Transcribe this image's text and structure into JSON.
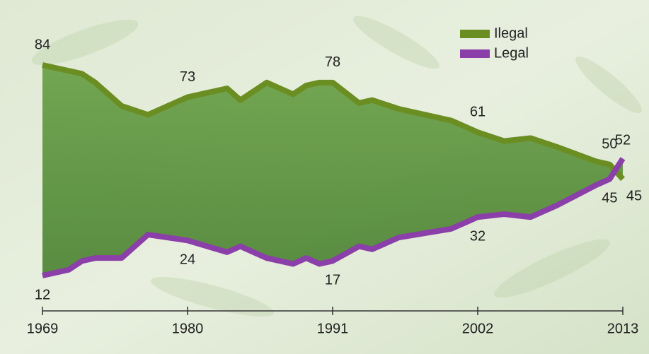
{
  "chart_data": {
    "type": "line",
    "x": [
      1969,
      1971,
      1972,
      1973,
      1975,
      1977,
      1980,
      1983,
      1984,
      1986,
      1988,
      1989,
      1990,
      1991,
      1993,
      1994,
      1996,
      2000,
      2002,
      2004,
      2006,
      2008,
      2011,
      2012,
      2013
    ],
    "xlim": [
      1969,
      2013
    ],
    "xticks": [
      1969,
      1980,
      1991,
      2002,
      2013
    ],
    "legend": "top-right",
    "series": [
      {
        "name": "Ilegal",
        "color": "#6b8e23",
        "values": [
          84,
          82,
          81,
          78,
          70,
          67,
          73,
          76,
          72,
          78,
          74,
          77,
          78,
          78,
          71,
          72,
          69,
          65,
          61,
          58,
          59,
          56,
          51,
          50,
          45
        ],
        "value_labels": [
          "84",
          null,
          null,
          null,
          null,
          null,
          "73",
          null,
          null,
          null,
          null,
          null,
          null,
          "78",
          null,
          null,
          null,
          null,
          "61",
          null,
          null,
          null,
          null,
          "50",
          "45"
        ]
      },
      {
        "name": "Legal",
        "color": "#8b3fa8",
        "values": [
          12,
          14,
          17,
          18,
          18,
          26,
          24,
          20,
          22,
          18,
          16,
          18,
          16,
          17,
          22,
          21,
          25,
          28,
          32,
          33,
          32,
          36,
          43,
          45,
          52
        ],
        "value_labels": [
          "12",
          null,
          null,
          null,
          null,
          null,
          "24",
          null,
          null,
          null,
          null,
          null,
          null,
          "17",
          null,
          null,
          null,
          null,
          "32",
          null,
          null,
          null,
          null,
          "45",
          "52"
        ]
      }
    ]
  }
}
